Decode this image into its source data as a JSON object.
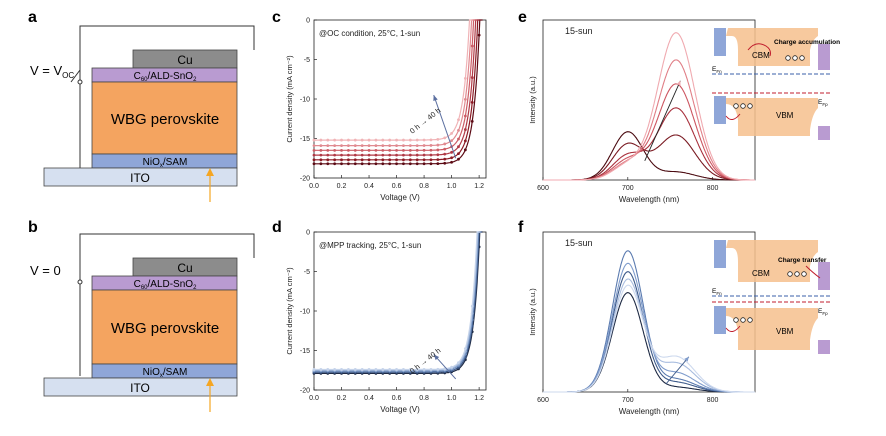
{
  "panels": {
    "a": {
      "letter": "a",
      "voltage_pre": "V = V",
      "voltage_sub": "OC"
    },
    "b": {
      "letter": "b",
      "voltage": "V = 0"
    },
    "c": {
      "letter": "c"
    },
    "d": {
      "letter": "d"
    },
    "e": {
      "letter": "e"
    },
    "f": {
      "letter": "f"
    }
  },
  "device": {
    "cu": "Cu",
    "etl_pre": "C",
    "etl_sub": "60",
    "etl_post": "/ALD-SnO",
    "etl_sub2": "2",
    "perovskite": "WBG perovskite",
    "htl_pre": "NiO",
    "htl_sub": "x",
    "htl_post": "/SAM",
    "ito": "ITO",
    "colors": {
      "cu": "#8c8c8c",
      "etl": "#b99bd1",
      "perovskite": "#f4a460",
      "htl": "#8fa6d8",
      "ito": "#d6e0f0",
      "arrow": "#f5a623"
    }
  },
  "chart_data": [
    {
      "type": "line",
      "panel": "c",
      "annotation": "@OC condition, 25°C, 1-sun",
      "arrow_label": "0 h → 40 h",
      "xlabel": "Voltage (V)",
      "ylabel": "Current density (mA cm⁻²)",
      "xlim": [
        0,
        1.25
      ],
      "ylim": [
        -20,
        0
      ],
      "xticks": [
        "0.0",
        "0.2",
        "0.4",
        "0.6",
        "0.8",
        "1.0",
        "1.2"
      ],
      "yticks": [
        "0",
        "-5",
        "-10",
        "-15",
        "-20"
      ],
      "series": [
        {
          "jsc": -18.2,
          "voc": 1.205,
          "color": "#5c0a14"
        },
        {
          "jsc": -17.7,
          "voc": 1.19,
          "color": "#8b1a24"
        },
        {
          "jsc": -17.1,
          "voc": 1.175,
          "color": "#b03a46"
        },
        {
          "jsc": -16.5,
          "voc": 1.16,
          "color": "#cc5d66"
        },
        {
          "jsc": -15.9,
          "voc": 1.145,
          "color": "#e08a90"
        },
        {
          "jsc": -15.2,
          "voc": 1.13,
          "color": "#f0b3b6"
        }
      ]
    },
    {
      "type": "line",
      "panel": "d",
      "annotation": "@MPP tracking, 25°C, 1-sun",
      "arrow_label": "0 h → 40 h",
      "xlabel": "Voltage (V)",
      "ylabel": "Current density (mA cm⁻²)",
      "xlim": [
        0,
        1.25
      ],
      "ylim": [
        -20,
        0
      ],
      "xticks": [
        "0.0",
        "0.2",
        "0.4",
        "0.6",
        "0.8",
        "1.0",
        "1.2"
      ],
      "yticks": [
        "0",
        "-5",
        "-10",
        "-15",
        "-20"
      ],
      "series": [
        {
          "jsc": -17.9,
          "voc": 1.205,
          "color": "#1e2a44"
        },
        {
          "jsc": -17.75,
          "voc": 1.2,
          "color": "#3d5a8a"
        },
        {
          "jsc": -17.6,
          "voc": 1.195,
          "color": "#6f8fc0"
        },
        {
          "jsc": -17.5,
          "voc": 1.19,
          "color": "#9fb6d9"
        },
        {
          "jsc": -17.4,
          "voc": 1.185,
          "color": "#c5d3ea"
        }
      ]
    },
    {
      "type": "line",
      "panel": "e",
      "annotation": "15-sun",
      "xlabel": "Wavelength (nm)",
      "ylabel": "Intensity (a.u.)",
      "xlim": [
        600,
        850
      ],
      "xticks": [
        "600",
        "700",
        "800"
      ],
      "series": [
        {
          "p1": 0.3,
          "p2": 0.05,
          "color": "#4a0a10"
        },
        {
          "p1": 0.22,
          "p2": 0.28,
          "color": "#7a1a22"
        },
        {
          "p1": 0.15,
          "p2": 0.45,
          "color": "#a8303c"
        },
        {
          "p1": 0.12,
          "p2": 0.6,
          "color": "#cc5560"
        },
        {
          "p1": 0.1,
          "p2": 0.75,
          "color": "#e07e86"
        },
        {
          "p1": 0.09,
          "p2": 0.92,
          "color": "#f0aab0"
        }
      ]
    },
    {
      "type": "line",
      "panel": "f",
      "annotation": "15-sun",
      "xlabel": "Wavelength (nm)",
      "ylabel": "Intensity (a.u.)",
      "xlim": [
        600,
        850
      ],
      "xticks": [
        "600",
        "700",
        "800"
      ],
      "series": [
        {
          "p1": 0.62,
          "p2": 0.03,
          "color": "#1e2a44"
        },
        {
          "p1": 0.75,
          "p2": 0.06,
          "color": "#3d5a8a"
        },
        {
          "p1": 0.88,
          "p2": 0.08,
          "color": "#5b7bb0"
        },
        {
          "p1": 0.8,
          "p2": 0.12,
          "color": "#7f9ccc"
        },
        {
          "p1": 0.7,
          "p2": 0.18,
          "color": "#a9bddf"
        },
        {
          "p1": 0.66,
          "p2": 0.22,
          "color": "#cdd9ee"
        }
      ]
    }
  ],
  "insets": {
    "e": {
      "cbm": "CBM",
      "vbm": "VBM",
      "label": "Charge accumulation",
      "efn": "E",
      "efn_sub": "Fn",
      "efp": "E",
      "efp_sub": "Fp"
    },
    "f": {
      "cbm": "CBM",
      "vbm": "VBM",
      "label": "Charge transfer",
      "efn": "E",
      "efn_sub": "Fn",
      "efp": "E",
      "efp_sub": "Fp"
    }
  }
}
